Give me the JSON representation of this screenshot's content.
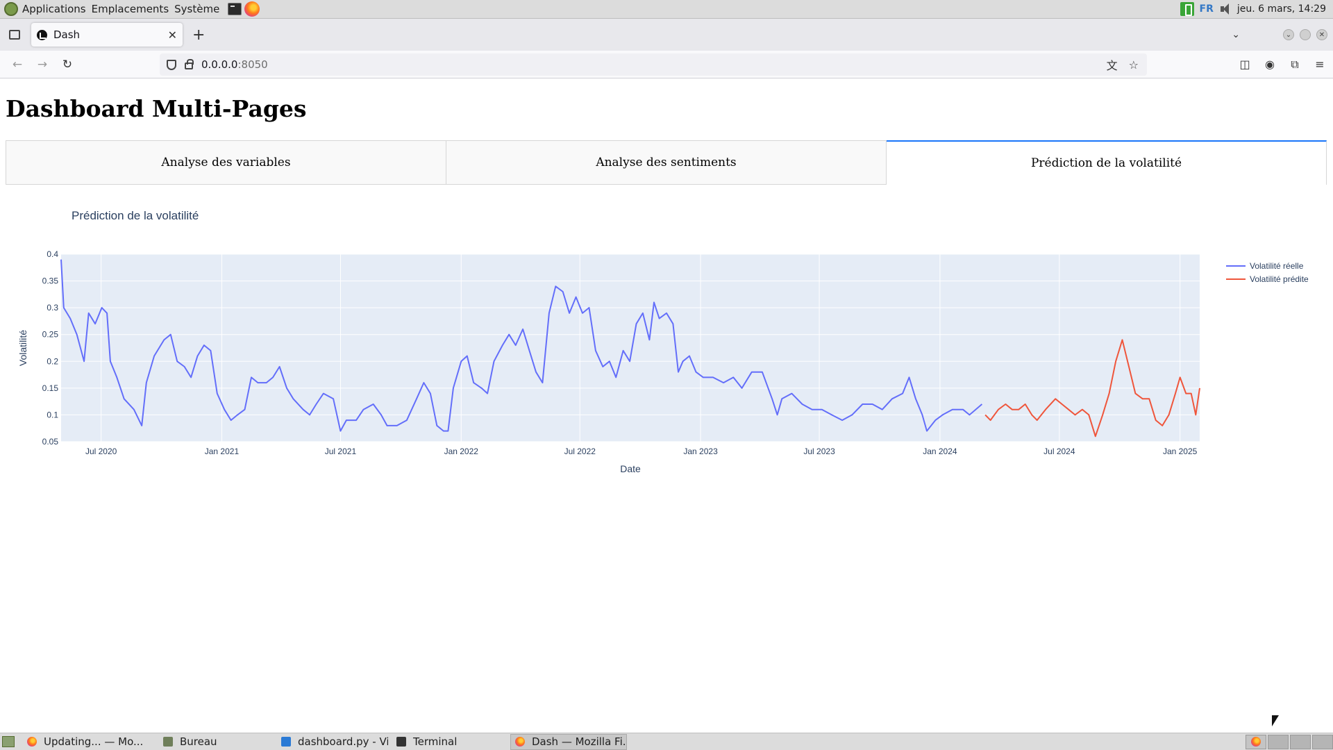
{
  "top_panel": {
    "menus": [
      "Applications",
      "Emplacements",
      "Système"
    ],
    "language": "FR",
    "clock": "jeu. 6 mars, 14:29"
  },
  "browser": {
    "tab_title": "Dash",
    "url_host": "0.0.0.0",
    "url_port": ":8050"
  },
  "page": {
    "title": "Dashboard Multi-Pages",
    "tabs": [
      {
        "label": "Analyse des variables",
        "selected": false
      },
      {
        "label": "Analyse des sentiments",
        "selected": false
      },
      {
        "label": "Prédiction de la volatilité",
        "selected": true
      }
    ]
  },
  "chart_data": {
    "type": "line",
    "title": "Prédiction de la volatilité",
    "xlabel": "Date",
    "ylabel": "Volatilité",
    "x_range": [
      "2020-05-01",
      "2025-01-31"
    ],
    "ylim": [
      0.05,
      0.4
    ],
    "y_ticks": [
      0.05,
      0.1,
      0.15,
      0.2,
      0.25,
      0.3,
      0.35,
      0.4
    ],
    "x_ticks": [
      {
        "date": "2020-07-01",
        "label": "Jul 2020"
      },
      {
        "date": "2021-01-01",
        "label": "Jan 2021"
      },
      {
        "date": "2021-07-01",
        "label": "Jul 2021"
      },
      {
        "date": "2022-01-01",
        "label": "Jan 2022"
      },
      {
        "date": "2022-07-01",
        "label": "Jul 2022"
      },
      {
        "date": "2023-01-01",
        "label": "Jan 2023"
      },
      {
        "date": "2023-07-01",
        "label": "Jul 2023"
      },
      {
        "date": "2024-01-01",
        "label": "Jan 2024"
      },
      {
        "date": "2024-07-01",
        "label": "Jul 2024"
      },
      {
        "date": "2025-01-01",
        "label": "Jan 2025"
      }
    ],
    "legend_position": "top-right",
    "grid": true,
    "series": [
      {
        "name": "Volatilité réelle",
        "color": "#636efa",
        "points": [
          [
            "2020-05-01",
            0.39
          ],
          [
            "2020-05-05",
            0.3
          ],
          [
            "2020-05-15",
            0.28
          ],
          [
            "2020-05-25",
            0.25
          ],
          [
            "2020-06-05",
            0.2
          ],
          [
            "2020-06-12",
            0.29
          ],
          [
            "2020-06-22",
            0.27
          ],
          [
            "2020-07-02",
            0.3
          ],
          [
            "2020-07-10",
            0.29
          ],
          [
            "2020-07-15",
            0.2
          ],
          [
            "2020-07-25",
            0.17
          ],
          [
            "2020-08-05",
            0.13
          ],
          [
            "2020-08-20",
            0.11
          ],
          [
            "2020-09-01",
            0.08
          ],
          [
            "2020-09-08",
            0.16
          ],
          [
            "2020-09-20",
            0.21
          ],
          [
            "2020-10-05",
            0.24
          ],
          [
            "2020-10-15",
            0.25
          ],
          [
            "2020-10-25",
            0.2
          ],
          [
            "2020-11-05",
            0.19
          ],
          [
            "2020-11-15",
            0.17
          ],
          [
            "2020-11-25",
            0.21
          ],
          [
            "2020-12-05",
            0.23
          ],
          [
            "2020-12-15",
            0.22
          ],
          [
            "2020-12-25",
            0.14
          ],
          [
            "2021-01-05",
            0.11
          ],
          [
            "2021-01-15",
            0.09
          ],
          [
            "2021-01-25",
            0.1
          ],
          [
            "2021-02-05",
            0.11
          ],
          [
            "2021-02-15",
            0.17
          ],
          [
            "2021-02-25",
            0.16
          ],
          [
            "2021-03-10",
            0.16
          ],
          [
            "2021-03-20",
            0.17
          ],
          [
            "2021-03-30",
            0.19
          ],
          [
            "2021-04-10",
            0.15
          ],
          [
            "2021-04-20",
            0.13
          ],
          [
            "2021-05-05",
            0.11
          ],
          [
            "2021-05-15",
            0.1
          ],
          [
            "2021-05-25",
            0.12
          ],
          [
            "2021-06-05",
            0.14
          ],
          [
            "2021-06-20",
            0.13
          ],
          [
            "2021-07-01",
            0.07
          ],
          [
            "2021-07-10",
            0.09
          ],
          [
            "2021-07-25",
            0.09
          ],
          [
            "2021-08-05",
            0.11
          ],
          [
            "2021-08-20",
            0.12
          ],
          [
            "2021-09-01",
            0.1
          ],
          [
            "2021-09-10",
            0.08
          ],
          [
            "2021-09-25",
            0.08
          ],
          [
            "2021-10-10",
            0.09
          ],
          [
            "2021-10-25",
            0.13
          ],
          [
            "2021-11-05",
            0.16
          ],
          [
            "2021-11-15",
            0.14
          ],
          [
            "2021-11-25",
            0.08
          ],
          [
            "2021-12-05",
            0.07
          ],
          [
            "2021-12-12",
            0.07
          ],
          [
            "2021-12-20",
            0.15
          ],
          [
            "2022-01-01",
            0.2
          ],
          [
            "2022-01-10",
            0.21
          ],
          [
            "2022-01-20",
            0.16
          ],
          [
            "2022-02-01",
            0.15
          ],
          [
            "2022-02-10",
            0.14
          ],
          [
            "2022-02-20",
            0.2
          ],
          [
            "2022-03-05",
            0.23
          ],
          [
            "2022-03-15",
            0.25
          ],
          [
            "2022-03-25",
            0.23
          ],
          [
            "2022-04-05",
            0.26
          ],
          [
            "2022-04-15",
            0.22
          ],
          [
            "2022-04-25",
            0.18
          ],
          [
            "2022-05-05",
            0.16
          ],
          [
            "2022-05-15",
            0.29
          ],
          [
            "2022-05-25",
            0.34
          ],
          [
            "2022-06-05",
            0.33
          ],
          [
            "2022-06-15",
            0.29
          ],
          [
            "2022-06-25",
            0.32
          ],
          [
            "2022-07-05",
            0.29
          ],
          [
            "2022-07-15",
            0.3
          ],
          [
            "2022-07-25",
            0.22
          ],
          [
            "2022-08-05",
            0.19
          ],
          [
            "2022-08-15",
            0.2
          ],
          [
            "2022-08-25",
            0.17
          ],
          [
            "2022-09-05",
            0.22
          ],
          [
            "2022-09-15",
            0.2
          ],
          [
            "2022-09-25",
            0.27
          ],
          [
            "2022-10-05",
            0.29
          ],
          [
            "2022-10-15",
            0.24
          ],
          [
            "2022-10-22",
            0.31
          ],
          [
            "2022-10-30",
            0.28
          ],
          [
            "2022-11-10",
            0.29
          ],
          [
            "2022-11-20",
            0.27
          ],
          [
            "2022-11-28",
            0.18
          ],
          [
            "2022-12-05",
            0.2
          ],
          [
            "2022-12-15",
            0.21
          ],
          [
            "2022-12-25",
            0.18
          ],
          [
            "2023-01-05",
            0.17
          ],
          [
            "2023-01-20",
            0.17
          ],
          [
            "2023-02-05",
            0.16
          ],
          [
            "2023-02-20",
            0.17
          ],
          [
            "2023-03-05",
            0.15
          ],
          [
            "2023-03-20",
            0.18
          ],
          [
            "2023-04-05",
            0.18
          ],
          [
            "2023-04-20",
            0.13
          ],
          [
            "2023-04-28",
            0.1
          ],
          [
            "2023-05-05",
            0.13
          ],
          [
            "2023-05-20",
            0.14
          ],
          [
            "2023-06-05",
            0.12
          ],
          [
            "2023-06-20",
            0.11
          ],
          [
            "2023-07-05",
            0.11
          ],
          [
            "2023-07-20",
            0.1
          ],
          [
            "2023-08-05",
            0.09
          ],
          [
            "2023-08-20",
            0.1
          ],
          [
            "2023-09-05",
            0.12
          ],
          [
            "2023-09-20",
            0.12
          ],
          [
            "2023-10-05",
            0.11
          ],
          [
            "2023-10-20",
            0.13
          ],
          [
            "2023-11-05",
            0.14
          ],
          [
            "2023-11-15",
            0.17
          ],
          [
            "2023-11-25",
            0.13
          ],
          [
            "2023-12-05",
            0.1
          ],
          [
            "2023-12-12",
            0.07
          ],
          [
            "2023-12-25",
            0.09
          ],
          [
            "2024-01-05",
            0.1
          ],
          [
            "2024-01-20",
            0.11
          ],
          [
            "2024-02-05",
            0.11
          ],
          [
            "2024-02-15",
            0.1
          ],
          [
            "2024-03-05",
            0.12
          ]
        ]
      },
      {
        "name": "Volatilité prédite",
        "color": "#ef553b",
        "points": [
          [
            "2024-03-10",
            0.1
          ],
          [
            "2024-03-18",
            0.09
          ],
          [
            "2024-03-30",
            0.11
          ],
          [
            "2024-04-10",
            0.12
          ],
          [
            "2024-04-20",
            0.11
          ],
          [
            "2024-04-30",
            0.11
          ],
          [
            "2024-05-10",
            0.12
          ],
          [
            "2024-05-20",
            0.1
          ],
          [
            "2024-05-28",
            0.09
          ],
          [
            "2024-06-10",
            0.11
          ],
          [
            "2024-06-25",
            0.13
          ],
          [
            "2024-07-05",
            0.12
          ],
          [
            "2024-07-15",
            0.11
          ],
          [
            "2024-07-25",
            0.1
          ],
          [
            "2024-08-05",
            0.11
          ],
          [
            "2024-08-15",
            0.1
          ],
          [
            "2024-08-25",
            0.06
          ],
          [
            "2024-09-05",
            0.1
          ],
          [
            "2024-09-15",
            0.14
          ],
          [
            "2024-09-25",
            0.2
          ],
          [
            "2024-10-05",
            0.24
          ],
          [
            "2024-10-15",
            0.19
          ],
          [
            "2024-10-25",
            0.14
          ],
          [
            "2024-11-05",
            0.13
          ],
          [
            "2024-11-15",
            0.13
          ],
          [
            "2024-11-25",
            0.09
          ],
          [
            "2024-12-05",
            0.08
          ],
          [
            "2024-12-15",
            0.1
          ],
          [
            "2024-12-25",
            0.14
          ],
          [
            "2025-01-01",
            0.17
          ],
          [
            "2025-01-10",
            0.14
          ],
          [
            "2025-01-18",
            0.14
          ],
          [
            "2025-01-25",
            0.1
          ],
          [
            "2025-01-31",
            0.15
          ]
        ]
      }
    ]
  },
  "taskbar": {
    "tasks": [
      {
        "label": "Updating... — Mo...",
        "icon": "firefox-icon",
        "active": false
      },
      {
        "label": "Bureau",
        "icon": "folder-icon",
        "active": false
      },
      {
        "label": "dashboard.py - Vi...",
        "icon": "vscode-icon",
        "active": false
      },
      {
        "label": "Terminal",
        "icon": "terminal-icon",
        "active": false
      },
      {
        "label": "Dash — Mozilla Fi...",
        "icon": "firefox-icon",
        "active": true
      }
    ]
  }
}
